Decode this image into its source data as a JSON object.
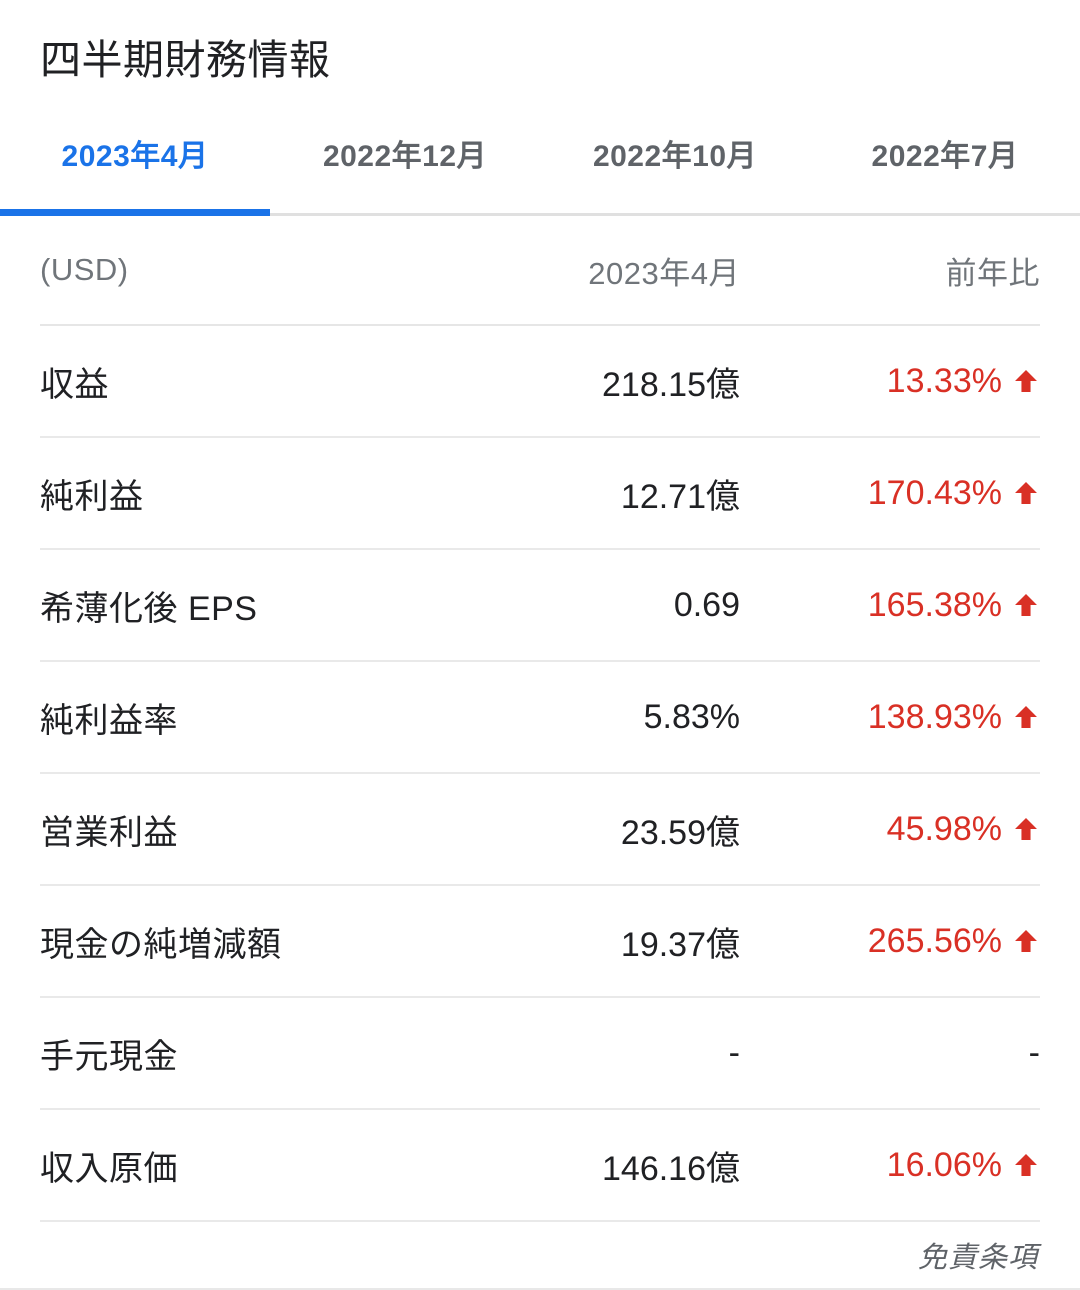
{
  "page": {
    "title": "四半期財務情報"
  },
  "tabs": [
    {
      "label": "2023年4月",
      "active": true
    },
    {
      "label": "2022年12月",
      "active": false
    },
    {
      "label": "2022年10月",
      "active": false
    },
    {
      "label": "2022年7月",
      "active": false
    }
  ],
  "table": {
    "currency_label": "(USD)",
    "period_header": "2023年4月",
    "yoy_header": "前年比",
    "rows": [
      {
        "label": "収益",
        "value": "218.15億",
        "change": "13.33%",
        "direction": "up"
      },
      {
        "label": "純利益",
        "value": "12.71億",
        "change": "170.43%",
        "direction": "up"
      },
      {
        "label": "希薄化後 EPS",
        "value": "0.69",
        "change": "165.38%",
        "direction": "up"
      },
      {
        "label": "純利益率",
        "value": "5.83%",
        "change": "138.93%",
        "direction": "up"
      },
      {
        "label": "営業利益",
        "value": "23.59億",
        "change": "45.98%",
        "direction": "up"
      },
      {
        "label": "現金の純増減額",
        "value": "19.37億",
        "change": "265.56%",
        "direction": "up"
      },
      {
        "label": "手元現金",
        "value": "-",
        "change": "-",
        "direction": "none"
      },
      {
        "label": "収入原価",
        "value": "146.16億",
        "change": "16.06%",
        "direction": "up"
      }
    ]
  },
  "footer": {
    "disclaimer_label": "免責条項"
  },
  "colors": {
    "accent_blue": "#1a73e8",
    "up_red": "#d93025",
    "text_dark": "#202124",
    "text_gray": "#5f6368",
    "divider": "#e6e6e6"
  }
}
